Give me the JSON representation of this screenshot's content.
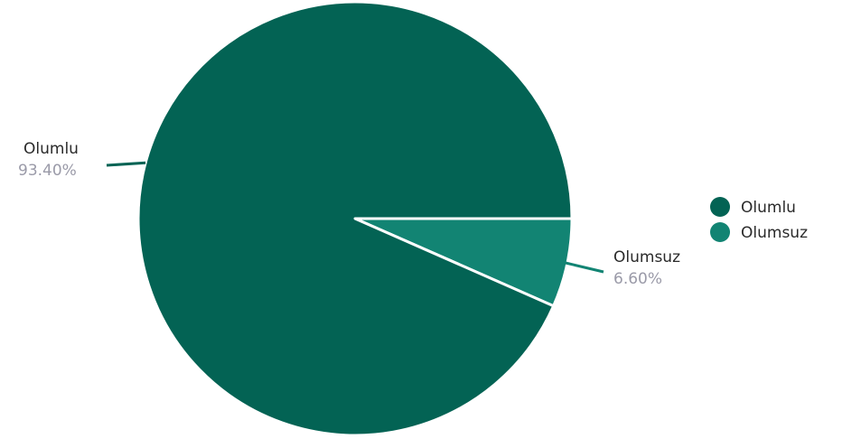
{
  "chart_data": {
    "type": "pie",
    "categories": [
      "Olumlu",
      "Olumsuz"
    ],
    "values": [
      93.4,
      6.6
    ],
    "data_labels": [
      "93.40%",
      "6.60%"
    ],
    "colors": [
      "#036354",
      "#128473"
    ],
    "legend_position": "right",
    "title": ""
  }
}
